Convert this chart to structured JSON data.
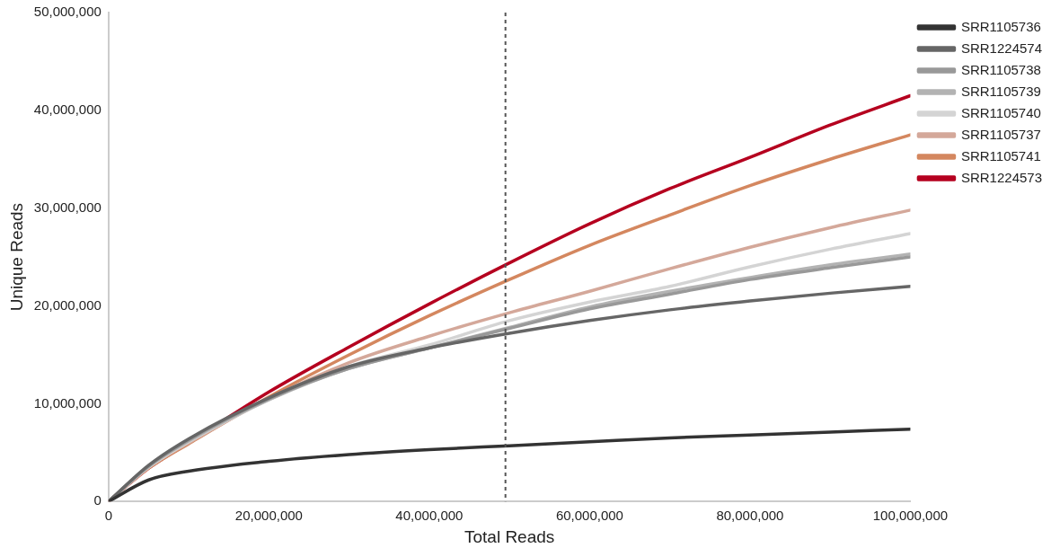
{
  "chart_data": {
    "type": "line",
    "xlabel": "Total Reads",
    "ylabel": "Unique Reads",
    "x": [
      0,
      5000000,
      10000000,
      20000000,
      30000000,
      40000000,
      50000000,
      60000000,
      70000000,
      80000000,
      90000000,
      100000000
    ],
    "series": [
      {
        "name": "SRR1105736",
        "color": "#333333",
        "values": [
          0,
          2200000,
          3100000,
          4100000,
          4800000,
          5300000,
          5700000,
          6100000,
          6500000,
          6800000,
          7100000,
          7400000
        ]
      },
      {
        "name": "SRR1224574",
        "color": "#666666",
        "values": [
          0,
          3700000,
          6400000,
          10600000,
          13800000,
          15700000,
          17200000,
          18500000,
          19600000,
          20500000,
          21300000,
          22000000
        ]
      },
      {
        "name": "SRR1105738",
        "color": "#999999",
        "values": [
          0,
          3600000,
          6300000,
          10500000,
          13600000,
          15700000,
          17700000,
          19700000,
          21200000,
          22700000,
          23900000,
          25000000
        ]
      },
      {
        "name": "SRR1105739",
        "color": "#b3b3b3",
        "values": [
          0,
          3600000,
          6200000,
          10400000,
          13600000,
          15700000,
          17800000,
          19900000,
          21500000,
          22900000,
          24200000,
          25300000
        ]
      },
      {
        "name": "SRR1105740",
        "color": "#d4d4d4",
        "values": [
          0,
          3500000,
          6100000,
          10400000,
          13800000,
          16000000,
          18500000,
          20400000,
          22000000,
          24000000,
          25800000,
          27400000
        ]
      },
      {
        "name": "SRR1105737",
        "color": "#d4a89a",
        "values": [
          0,
          3500000,
          6000000,
          10500000,
          14200000,
          16900000,
          19300000,
          21500000,
          23800000,
          26000000,
          28000000,
          29800000
        ]
      },
      {
        "name": "SRR1105741",
        "color": "#d4875f",
        "values": [
          0,
          3400000,
          5900000,
          10700000,
          15000000,
          19000000,
          22700000,
          26200000,
          29300000,
          32300000,
          35000000,
          37500000
        ]
      },
      {
        "name": "SRR1224573",
        "color": "#b5001f",
        "values": [
          0,
          3400000,
          6000000,
          11200000,
          15800000,
          20200000,
          24400000,
          28400000,
          32000000,
          35200000,
          38500000,
          41500000
        ]
      }
    ],
    "xlim": [
      0,
      100000000
    ],
    "xticks": [
      {
        "value": 0,
        "label": "0"
      },
      {
        "value": 20000000,
        "label": "20,000,000"
      },
      {
        "value": 40000000,
        "label": "40,000,000"
      },
      {
        "value": 60000000,
        "label": "60,000,000"
      },
      {
        "value": 80000000,
        "label": "80,000,000"
      },
      {
        "value": 100000000,
        "label": "100,000,000"
      }
    ],
    "ylim": [
      0,
      50000000
    ],
    "yticks": [
      {
        "value": 0,
        "label": "0"
      },
      {
        "value": 10000000,
        "label": "10,000,000"
      },
      {
        "value": 20000000,
        "label": "20,000,000"
      },
      {
        "value": 30000000,
        "label": "30,000,000"
      },
      {
        "value": 40000000,
        "label": "40,000,000"
      },
      {
        "value": 50000000,
        "label": "50,000,000"
      }
    ],
    "ref_lines": [
      {
        "axis": "x",
        "value": 49500000,
        "label": null,
        "color": "#555555",
        "line_style": "dashed"
      }
    ],
    "grid": false,
    "legend": "top right",
    "marker": "none",
    "line_style": "solid"
  }
}
